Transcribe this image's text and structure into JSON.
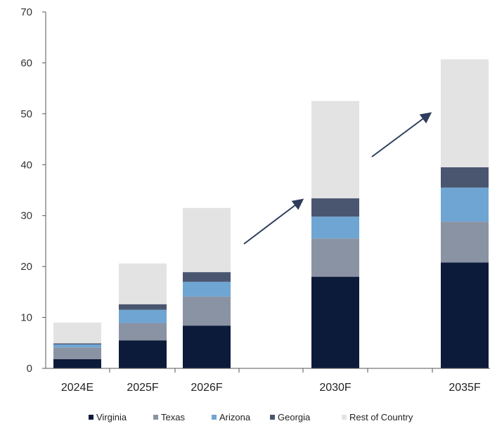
{
  "chart_data": {
    "type": "bar",
    "stacked": true,
    "title": "",
    "xlabel": "",
    "ylabel": "",
    "ylim": [
      0,
      70
    ],
    "yticks": [
      0,
      10,
      20,
      30,
      40,
      50,
      60,
      70
    ],
    "grid": false,
    "legend_position": "bottom",
    "categories": [
      "2024E",
      "2025F",
      "2026F",
      "2030F",
      "2035F"
    ],
    "series": [
      {
        "name": "Virginia",
        "color": "#0d1b3a",
        "values": [
          1.8,
          5.5,
          8.4,
          18.0,
          20.8
        ]
      },
      {
        "name": "Texas",
        "color": "#8a93a3",
        "values": [
          2.3,
          3.4,
          5.7,
          7.5,
          8.0
        ]
      },
      {
        "name": "Arizona",
        "color": "#6fa5d3",
        "values": [
          0.6,
          2.6,
          2.9,
          4.3,
          6.7
        ]
      },
      {
        "name": "Georgia",
        "color": "#4a5670",
        "values": [
          0.2,
          1.1,
          1.9,
          3.6,
          4.0
        ]
      },
      {
        "name": "Rest of Country",
        "color": "#e3e3e3",
        "values": [
          4.1,
          8.0,
          12.6,
          19.1,
          21.2
        ]
      }
    ],
    "annotations": [
      {
        "type": "arrow",
        "from_category_gap": "2026F-2030F",
        "meaning": "growth trend"
      },
      {
        "type": "arrow",
        "from_category_gap": "2030F-2035F",
        "meaning": "growth trend"
      }
    ]
  },
  "colors": {
    "axis": "#555555",
    "arrow": "#2e3d5c"
  }
}
